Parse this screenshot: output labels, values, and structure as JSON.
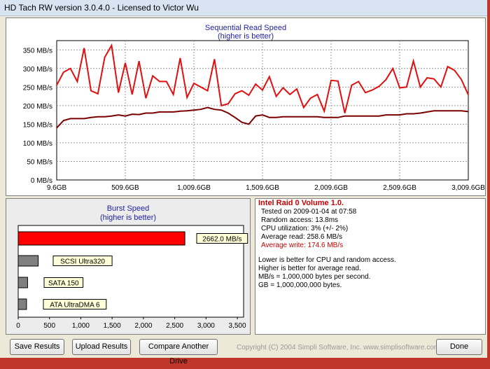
{
  "window": {
    "title": "HD Tach RW version 3.0.4.0 - Licensed to Victor Wu"
  },
  "sequential": {
    "title": "Sequential Read Speed",
    "subtitle": "(higher is better)",
    "y_ticks": [
      "350 MB/s",
      "300 MB/s",
      "250 MB/s",
      "200 MB/s",
      "150 MB/s",
      "100 MB/s",
      "50 MB/s",
      "0 MB/s"
    ],
    "x_ticks": [
      "9.6GB",
      "509.6GB",
      "1,009.6GB",
      "1,509.6GB",
      "2,009.6GB",
      "2,509.6GB",
      "3,009.6GB"
    ]
  },
  "burst": {
    "title": "Burst Speed",
    "subtitle": "(higher is better)",
    "x_ticks": [
      "0",
      "500",
      "1,000",
      "1,500",
      "2,000",
      "2,500",
      "3,000",
      "3,500"
    ]
  },
  "info": {
    "heading": "Intel Raid 0 Volume 1.0.",
    "tested_on": "Tested on 2009-01-04 at 07:58",
    "random_access": "Random access: 13.8ms",
    "cpu": "CPU utilization: 3% (+/- 2%)",
    "avg_read": "Average read: 258.6 MB/s",
    "avg_write": "Average write: 174.6 MB/s",
    "notes": [
      "Lower is better for CPU and random access.",
      "Higher is better for average read.",
      "MB/s = 1,000,000 bytes per second.",
      "GB = 1,000,000,000 bytes."
    ]
  },
  "buttons": {
    "save": "Save Results",
    "upload": "Upload Results",
    "compare": "Compare Another Drive",
    "done": "Done"
  },
  "copyright": "Copyright (C) 2004 Simpli Software, Inc. www.simplisoftware.com",
  "colors": {
    "read_line": "#e01010",
    "write_line": "#7a0000",
    "burst_bar_highlight": "#ff0000",
    "burst_bar_other": "#808080",
    "info_heading": "#cc0000"
  },
  "chart_data": [
    {
      "type": "line",
      "title": "Sequential Read Speed",
      "subtitle": "(higher is better)",
      "xlabel": "",
      "ylabel": "",
      "ylim": [
        0,
        375
      ],
      "x_unit": "GB",
      "x": [
        9.6,
        59.6,
        109.6,
        159.6,
        209.6,
        259.6,
        309.6,
        359.6,
        409.6,
        459.6,
        509.6,
        559.6,
        609.6,
        659.6,
        709.6,
        759.6,
        809.6,
        859.6,
        909.6,
        959.6,
        1009.6,
        1059.6,
        1109.6,
        1159.6,
        1209.6,
        1259.6,
        1309.6,
        1359.6,
        1409.6,
        1459.6,
        1509.6,
        1559.6,
        1609.6,
        1659.6,
        1709.6,
        1759.6,
        1809.6,
        1859.6,
        1909.6,
        1959.6,
        2009.6,
        2059.6,
        2109.6,
        2159.6,
        2209.6,
        2259.6,
        2309.6,
        2359.6,
        2409.6,
        2459.6,
        2509.6,
        2559.6,
        2609.6,
        2659.6,
        2709.6,
        2759.6,
        2809.6,
        2859.6,
        2909.6,
        2959.6,
        3009.6
      ],
      "series": [
        {
          "values": [
            255,
            290,
            300,
            265,
            355,
            240,
            232,
            330,
            362,
            235,
            315,
            230,
            320,
            220,
            280,
            265,
            265,
            230,
            328,
            222,
            260,
            250,
            240,
            325,
            200,
            205,
            232,
            240,
            228,
            258,
            242,
            278,
            225,
            248,
            230,
            245,
            195,
            220,
            230,
            185,
            268,
            266,
            180,
            255,
            265,
            235,
            242,
            252,
            270,
            300,
            248,
            250,
            320,
            250,
            275,
            272,
            250,
            305,
            295,
            270,
            229
          ]
        },
        {
          "values": [
            140,
            160,
            165,
            165,
            165,
            168,
            170,
            170,
            172,
            175,
            172,
            177,
            176,
            180,
            180,
            183,
            183,
            183,
            185,
            186,
            188,
            190,
            195,
            190,
            188,
            180,
            168,
            155,
            150,
            172,
            175,
            168,
            168,
            170,
            170,
            170,
            170,
            170,
            170,
            168,
            168,
            168,
            172,
            172,
            172,
            172,
            172,
            172,
            175,
            175,
            175,
            178,
            178,
            180,
            183,
            186,
            186,
            186,
            186,
            186,
            184
          ]
        }
      ]
    },
    {
      "type": "bar",
      "title": "Burst Speed",
      "subtitle": "(higher is better)",
      "orientation": "horizontal",
      "xlim": [
        0,
        3600
      ],
      "categories": [
        "2662.0 MB/s",
        "SCSI Ultra320",
        "SATA 150",
        "ATA UltraDMA 6"
      ],
      "values": [
        2662,
        320,
        150,
        133
      ]
    }
  ]
}
